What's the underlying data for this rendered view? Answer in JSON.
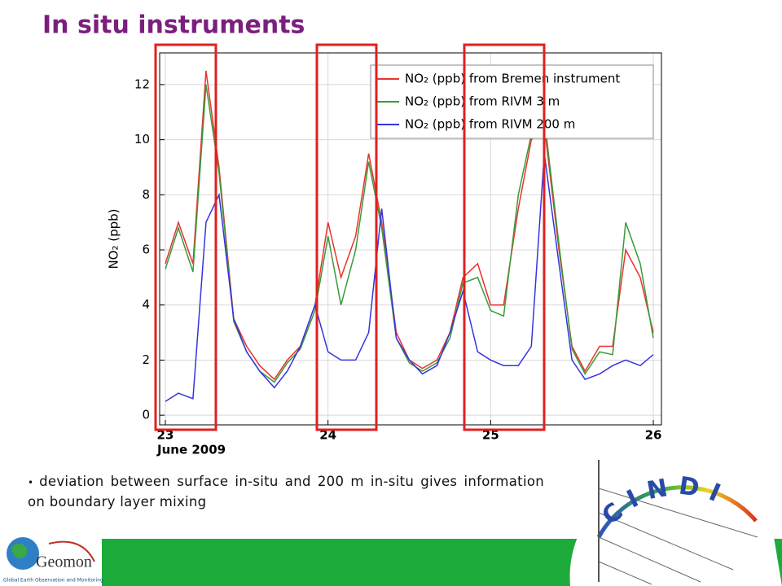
{
  "slide_title": "In situ instruments",
  "bullet": "deviation between surface in-situ and 200 m in-situ gives information on boundary layer mixing",
  "logos": {
    "geomon": "Geomon",
    "geomon_tagline": "Global Earth Observation and Monitoring",
    "cindi": "CINDI"
  },
  "chart_data": {
    "type": "line",
    "ylabel": "NO₂ (ppb)",
    "xlabel": "June 2009",
    "x": [
      23.0,
      23.08,
      23.17,
      23.25,
      23.33,
      23.42,
      23.5,
      23.58,
      23.67,
      23.75,
      23.83,
      23.92,
      24.0,
      24.08,
      24.17,
      24.25,
      24.33,
      24.42,
      24.5,
      24.58,
      24.67,
      24.75,
      24.83,
      24.92,
      25.0,
      25.08,
      25.17,
      25.25,
      25.33,
      25.42,
      25.5,
      25.58,
      25.67,
      25.75,
      25.83,
      25.92,
      26.0
    ],
    "series": [
      {
        "name": "NO₂ (ppb) from Bremen instrument",
        "color": "#e8332e",
        "values": [
          5.5,
          7.0,
          5.5,
          12.5,
          9.0,
          3.5,
          2.5,
          1.8,
          1.3,
          2.0,
          2.5,
          4.0,
          7.0,
          5.0,
          6.5,
          9.5,
          7.0,
          3.0,
          2.0,
          1.7,
          2.0,
          3.0,
          5.0,
          5.5,
          4.0,
          4.0,
          7.5,
          10.0,
          10.5,
          6.0,
          2.5,
          1.6,
          2.5,
          2.5,
          6.0,
          5.0,
          3.0
        ]
      },
      {
        "name": "NO₂ (ppb) from RIVM 3 m",
        "color": "#3a9a3a",
        "values": [
          5.3,
          6.8,
          5.2,
          12.0,
          8.8,
          3.4,
          2.3,
          1.6,
          1.2,
          1.9,
          2.4,
          3.8,
          6.5,
          4.0,
          6.0,
          9.2,
          6.8,
          2.8,
          1.9,
          1.6,
          1.9,
          2.8,
          4.8,
          5.0,
          3.8,
          3.6,
          8.0,
          10.2,
          10.8,
          6.2,
          2.4,
          1.5,
          2.3,
          2.2,
          7.0,
          5.5,
          2.8
        ]
      },
      {
        "name": "NO₂ (ppb) from RIVM 200 m",
        "color": "#3434e0",
        "values": [
          0.5,
          0.8,
          0.6,
          7.0,
          8.0,
          3.5,
          2.3,
          1.6,
          1.0,
          1.6,
          2.5,
          4.0,
          2.3,
          2.0,
          2.0,
          3.0,
          7.5,
          2.8,
          2.0,
          1.5,
          1.8,
          3.0,
          4.5,
          2.3,
          2.0,
          1.8,
          1.8,
          2.5,
          9.5,
          5.5,
          2.0,
          1.3,
          1.5,
          1.8,
          2.0,
          1.8,
          2.2
        ]
      }
    ],
    "xlim": [
      22.965,
      26.05
    ],
    "xticks": [
      23,
      24,
      25,
      26
    ],
    "ylim": [
      -0.35,
      13.15
    ],
    "yticks": [
      0,
      2,
      4,
      6,
      8,
      10,
      12
    ],
    "grid": true,
    "legend": "upper right"
  }
}
